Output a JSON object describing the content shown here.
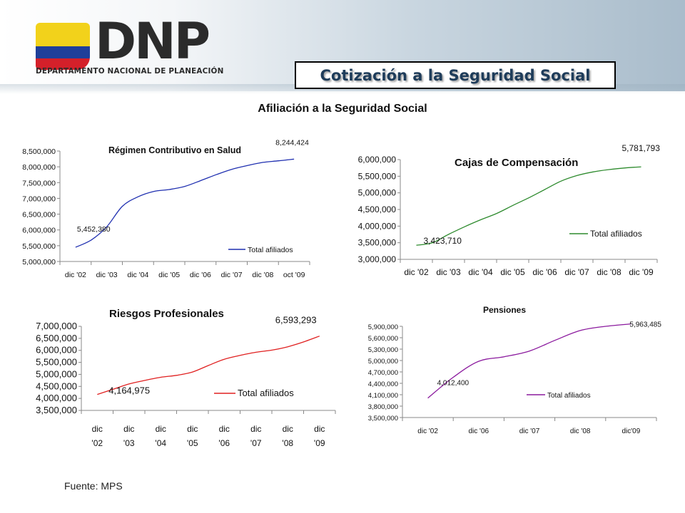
{
  "header": {
    "logo_text": "DNP",
    "logo_subtitle": "DEPARTAMENTO NACIONAL DE PLANEACIÓN",
    "slide_title": "Cotización a la Seguridad Social"
  },
  "subtitle": "Afiliación a la Seguridad Social",
  "source": "Fuente: MPS",
  "chart_data": [
    {
      "type": "line",
      "title": "Régimen Contributivo en Salud",
      "categories": [
        "dic '02",
        "dic '03",
        "dic '04",
        "dic '05",
        "dic '06",
        "dic '07",
        "dic '08",
        "oct '09"
      ],
      "x": [
        0,
        0.5,
        1,
        1.5,
        2,
        2.5,
        3,
        3.5,
        4,
        4.5,
        5,
        5.5,
        6,
        6.5,
        7
      ],
      "series": [
        {
          "name": "Total afiliados",
          "values": [
            5452380,
            5680000,
            6100000,
            6750000,
            7050000,
            7220000,
            7280000,
            7380000,
            7560000,
            7750000,
            7920000,
            8040000,
            8140000,
            8190000,
            8244424
          ]
        }
      ],
      "ylim": [
        5000000,
        8500000
      ],
      "yticks": [
        "5,000,000",
        "5,500,000",
        "6,000,000",
        "6,500,000",
        "7,000,000",
        "7,500,000",
        "8,000,000",
        "8,500,000"
      ],
      "annotations": [
        {
          "text": "5,452,380"
        },
        {
          "text": "8,244,424"
        }
      ],
      "color": "#1f2fb0",
      "legend": "bottom-right"
    },
    {
      "type": "line",
      "title": "Cajas de Compensación",
      "categories": [
        "dic '02",
        "dic '03",
        "dic '04",
        "dic '05",
        "dic '06",
        "dic '07",
        "dic '08",
        "dic '09"
      ],
      "x": [
        0,
        0.5,
        1,
        1.5,
        2,
        2.5,
        3,
        3.5,
        4,
        4.5,
        5,
        5.5,
        6,
        6.5,
        7
      ],
      "series": [
        {
          "name": "Total afiliados",
          "values": [
            3423710,
            3500000,
            3750000,
            3980000,
            4190000,
            4380000,
            4620000,
            4850000,
            5100000,
            5350000,
            5520000,
            5630000,
            5700000,
            5750000,
            5781793
          ]
        }
      ],
      "ylim": [
        3000000,
        6000000
      ],
      "yticks": [
        "3,000,000",
        "3,500,000",
        "4,000,000",
        "4,500,000",
        "5,000,000",
        "5,500,000",
        "6,000,000"
      ],
      "annotations": [
        {
          "text": "3,423,710"
        },
        {
          "text": "5,781,793"
        }
      ],
      "color": "#2e8b2e",
      "legend": "right"
    },
    {
      "type": "line",
      "title": "Riesgos Profesionales",
      "categories": [
        "dic\n'02",
        "dic\n'03",
        "dic\n'04",
        "dic\n'05",
        "dic\n'06",
        "dic\n'07",
        "dic\n'08",
        "dic\n'09"
      ],
      "x": [
        0,
        0.5,
        1,
        1.5,
        2,
        2.5,
        3,
        3.5,
        4,
        4.5,
        5,
        5.5,
        6,
        6.5,
        7
      ],
      "series": [
        {
          "name": "Total afiliados",
          "values": [
            4164975,
            4380000,
            4600000,
            4750000,
            4880000,
            4960000,
            5100000,
            5370000,
            5630000,
            5790000,
            5920000,
            6010000,
            6150000,
            6350000,
            6593293
          ]
        }
      ],
      "ylim": [
        3500000,
        7000000
      ],
      "yticks": [
        "3,500,000",
        "4,000,000",
        "4,500,000",
        "5,000,000",
        "5,500,000",
        "6,000,000",
        "6,500,000",
        "7,000,000"
      ],
      "annotations": [
        {
          "text": "4,164,975"
        },
        {
          "text": "6,593,293"
        }
      ],
      "color": "#e02020",
      "legend": "bottom-right"
    },
    {
      "type": "line",
      "title": "Pensiones",
      "categories": [
        "dic '02",
        "dic '06",
        "dic '07",
        "dic '08",
        "dic'09"
      ],
      "x": [
        0,
        0.5,
        1,
        1.5,
        2,
        2.5,
        3,
        3.5,
        4
      ],
      "series": [
        {
          "name": "Total afiliados",
          "values": [
            4012400,
            4560000,
            4980000,
            5100000,
            5250000,
            5530000,
            5790000,
            5900000,
            5963485
          ]
        }
      ],
      "ylim": [
        3500000,
        5900000
      ],
      "yticks": [
        "3,500,000",
        "3,800,000",
        "4,100,000",
        "4,400,000",
        "4,700,000",
        "5,000,000",
        "5,300,000",
        "5,600,000",
        "5,900,000"
      ],
      "annotations": [
        {
          "text": "4,012,400"
        },
        {
          "text": "5,963,485"
        }
      ],
      "color": "#8b1a9e",
      "legend": "bottom-right"
    }
  ]
}
